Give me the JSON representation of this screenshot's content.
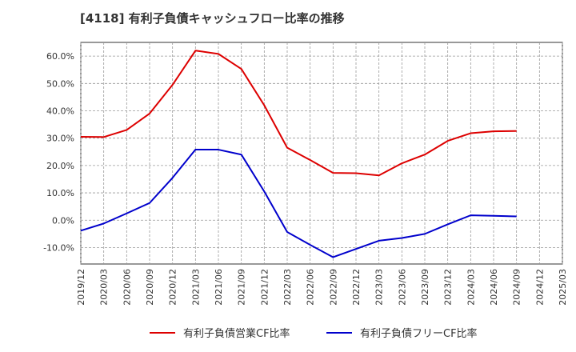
{
  "chart_data": {
    "type": "line",
    "title": "[4118]  有利子負債キャッシュフロー比率の推移",
    "xlabel": "",
    "ylabel": "",
    "ylim": [
      -16,
      65
    ],
    "yticks": [
      -10,
      0,
      10,
      20,
      30,
      40,
      50,
      60
    ],
    "ytick_labels": [
      "-10.0%",
      "0.0%",
      "10.0%",
      "20.0%",
      "30.0%",
      "40.0%",
      "50.0%",
      "60.0%"
    ],
    "x": [
      "2019/12",
      "2020/03",
      "2020/06",
      "2020/09",
      "2020/12",
      "2021/03",
      "2021/06",
      "2021/09",
      "2021/12",
      "2022/03",
      "2022/06",
      "2022/09",
      "2022/12",
      "2023/03",
      "2023/06",
      "2023/09",
      "2023/12",
      "2024/03",
      "2024/06",
      "2024/09",
      "2024/12",
      "2025/03"
    ],
    "grid": true,
    "legend": "bottom",
    "series": [
      {
        "name": "有利子負債営業CF比率",
        "color": "#dd0000",
        "values": [
          30.5,
          30.4,
          33.0,
          39.0,
          49.5,
          62.0,
          60.8,
          55.3,
          42.0,
          26.5,
          22.0,
          17.3,
          17.2,
          16.4,
          20.8,
          24.0,
          29.0,
          31.8,
          32.5,
          32.6,
          null,
          null
        ]
      },
      {
        "name": "有利子負債フリーCF比率",
        "color": "#0000cc",
        "values": [
          -3.8,
          -1.2,
          2.5,
          6.3,
          15.5,
          25.8,
          25.8,
          24.0,
          10.5,
          -4.3,
          -9.0,
          -13.5,
          -10.5,
          -7.5,
          -6.5,
          -5.0,
          -1.5,
          1.8,
          1.6,
          1.4,
          null,
          null
        ]
      }
    ]
  }
}
